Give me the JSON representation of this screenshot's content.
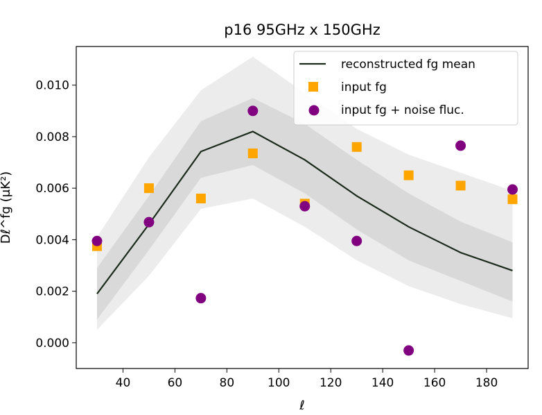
{
  "chart_data": {
    "type": "line",
    "title": "p16 95GHz x 150GHz",
    "xlabel": "ℓ",
    "ylabel": "Dℓ^fg (μK²)",
    "xlim": [
      22,
      196
    ],
    "ylim": [
      -0.001,
      0.0115
    ],
    "xticks": [
      40,
      60,
      80,
      100,
      120,
      140,
      160,
      180
    ],
    "yticks": [
      0.0,
      0.002,
      0.004,
      0.006,
      0.008,
      0.01
    ],
    "ytick_labels": [
      "0.000",
      "0.002",
      "0.004",
      "0.006",
      "0.008",
      "0.010"
    ],
    "x": [
      30,
      50,
      70,
      90,
      110,
      130,
      150,
      170,
      190
    ],
    "series": [
      {
        "name": "reconstructed fg mean",
        "kind": "line",
        "color": "#1a2a1a",
        "values": [
          0.0019,
          0.0046,
          0.00742,
          0.0082,
          0.0071,
          0.0057,
          0.0045,
          0.0035,
          0.0028
        ]
      },
      {
        "name": "input fg",
        "kind": "square",
        "color": "#ffa500",
        "values": [
          0.00375,
          0.006,
          0.0056,
          0.00735,
          0.0054,
          0.0076,
          0.0065,
          0.0061,
          0.00557
        ]
      },
      {
        "name": "input fg + noise fluc.",
        "kind": "circle",
        "color": "#800080",
        "values": [
          0.00395,
          0.00468,
          0.00173,
          0.009,
          0.0053,
          0.00395,
          -0.0003,
          0.00765,
          0.00595
        ]
      }
    ],
    "bands": [
      {
        "name": "2-sigma",
        "color": "#ececec",
        "lower": [
          0.0005,
          0.0026,
          0.0052,
          0.0056,
          0.0045,
          0.0032,
          0.0022,
          0.0015,
          0.00095
        ],
        "upper": [
          0.0041,
          0.0072,
          0.0098,
          0.0111,
          0.0097,
          0.0083,
          0.0073,
          0.0066,
          0.0059
        ]
      },
      {
        "name": "1-sigma",
        "color": "#d9d9d9",
        "lower": [
          0.0009,
          0.0036,
          0.0064,
          0.0069,
          0.0058,
          0.0044,
          0.0032,
          0.0024,
          0.0016
        ],
        "upper": [
          0.0029,
          0.0057,
          0.0086,
          0.0095,
          0.0085,
          0.0071,
          0.0058,
          0.0047,
          0.0039
        ]
      }
    ],
    "legend_position": "top-right"
  }
}
